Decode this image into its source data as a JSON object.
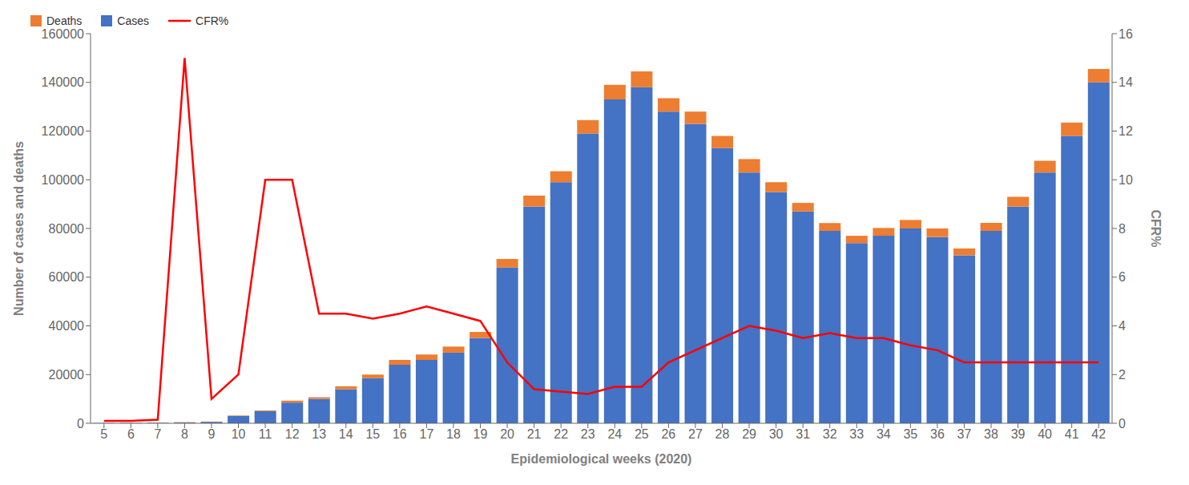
{
  "chart_data": {
    "type": "bar",
    "stacked": true,
    "grid": false,
    "legend": "upper left",
    "xlabel": "Epidemiological weeks (2020)",
    "ylabel": "Number of cases and deaths",
    "y2label": "CFR%",
    "categories": [
      "5",
      "6",
      "7",
      "8",
      "9",
      "10",
      "11",
      "12",
      "13",
      "14",
      "15",
      "16",
      "17",
      "18",
      "19",
      "20",
      "21",
      "22",
      "23",
      "24",
      "25",
      "26",
      "27",
      "28",
      "29",
      "30",
      "31",
      "32",
      "33",
      "34",
      "35",
      "36",
      "37",
      "38",
      "39",
      "40",
      "41",
      "42"
    ],
    "ylim": [
      0,
      160000
    ],
    "yticks": [
      0,
      20000,
      40000,
      60000,
      80000,
      100000,
      120000,
      140000,
      160000
    ],
    "y2lim": [
      0,
      16
    ],
    "y2ticks": [
      0,
      2,
      4,
      6,
      8,
      10,
      12,
      14,
      16
    ],
    "series": [
      {
        "name": "Cases",
        "type": "bar",
        "color": "#4472C4",
        "values": [
          100,
          150,
          200,
          300,
          600,
          3000,
          5000,
          8500,
          10000,
          14000,
          18500,
          24000,
          26000,
          29000,
          35000,
          64000,
          89000,
          99000,
          119000,
          133000,
          138000,
          128000,
          123000,
          113000,
          103000,
          95000,
          87000,
          79000,
          74000,
          77000,
          80000,
          76500,
          69000,
          79000,
          89000,
          103000,
          118000,
          140000
        ]
      },
      {
        "name": "Deaths",
        "type": "bar",
        "color": "#ED7D31",
        "values": [
          30,
          50,
          80,
          150,
          100,
          200,
          300,
          800,
          700,
          1200,
          1500,
          2000,
          2200,
          2500,
          2500,
          3500,
          4500,
          4500,
          5500,
          6000,
          6500,
          5500,
          5000,
          5000,
          5500,
          4000,
          3500,
          3200,
          3000,
          3200,
          3500,
          3500,
          2800,
          3300,
          4000,
          4800,
          5500,
          5500
        ]
      },
      {
        "name": "CFR%",
        "type": "line",
        "axis": "y2",
        "color": "#FF0000",
        "values": [
          0.1,
          0.1,
          0.15,
          15.0,
          1.0,
          2.0,
          10.0,
          10.0,
          4.5,
          4.5,
          4.3,
          4.5,
          4.8,
          4.5,
          4.2,
          2.5,
          1.4,
          1.3,
          1.2,
          1.5,
          1.5,
          2.5,
          3.0,
          3.5,
          4.0,
          3.8,
          3.5,
          3.7,
          3.5,
          3.5,
          3.2,
          3.0,
          2.5,
          2.5,
          2.5,
          2.5,
          2.5,
          2.5
        ]
      }
    ]
  }
}
